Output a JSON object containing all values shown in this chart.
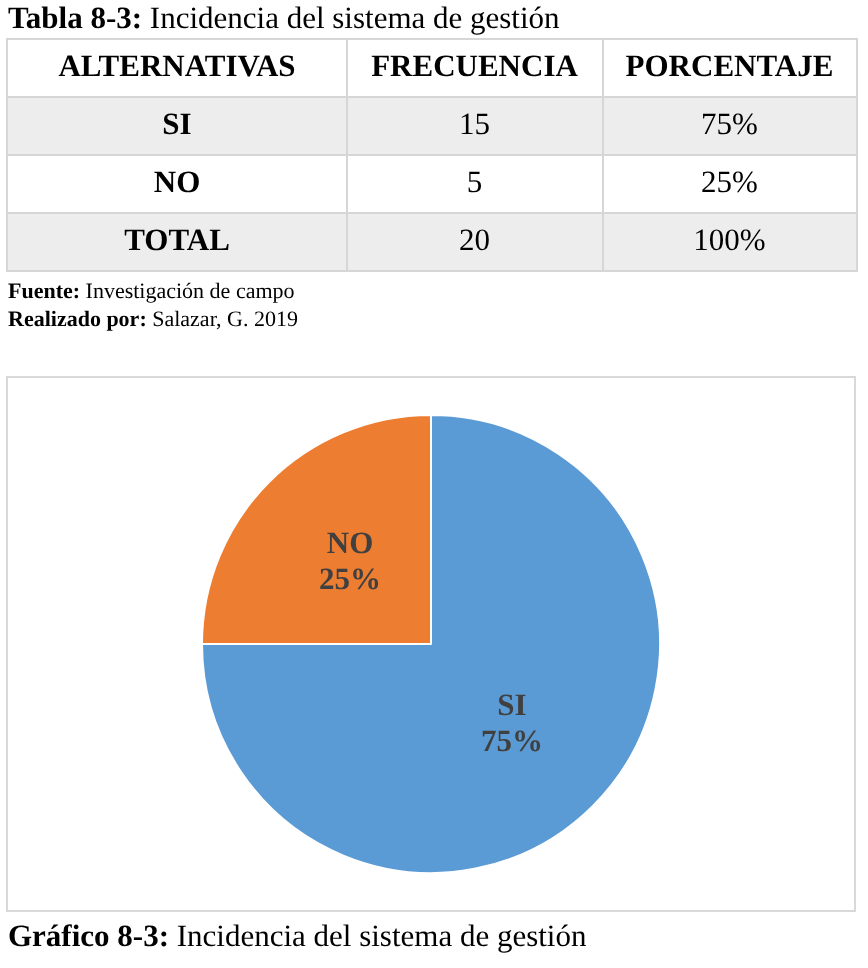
{
  "chart_data": [
    {
      "type": "other",
      "title": "Tabla 8-3: Incidencia del sistema de gestión",
      "categories": [
        "ALTERNATIVAS",
        "FRECUENCIA",
        "PORCENTAJE"
      ],
      "y_categories": [
        "SI",
        "NO",
        "TOTAL"
      ],
      "cell_labels": [
        [
          "15",
          "75%"
        ],
        [
          "5",
          "25%"
        ],
        [
          "20",
          "100%"
        ]
      ],
      "annotations": [
        "Fuente: Investigación de campo",
        "Realizado por: Salazar, G. 2019"
      ]
    },
    {
      "type": "pie",
      "title": "Gráfico 8-3: Incidencia del sistema de gestión",
      "categories": [
        "SI",
        "NO"
      ],
      "values": [
        75,
        25
      ],
      "colors": [
        "#5b9bd5",
        "#ed7d31"
      ],
      "value_labels": [
        "75%",
        "25%"
      ]
    }
  ]
}
